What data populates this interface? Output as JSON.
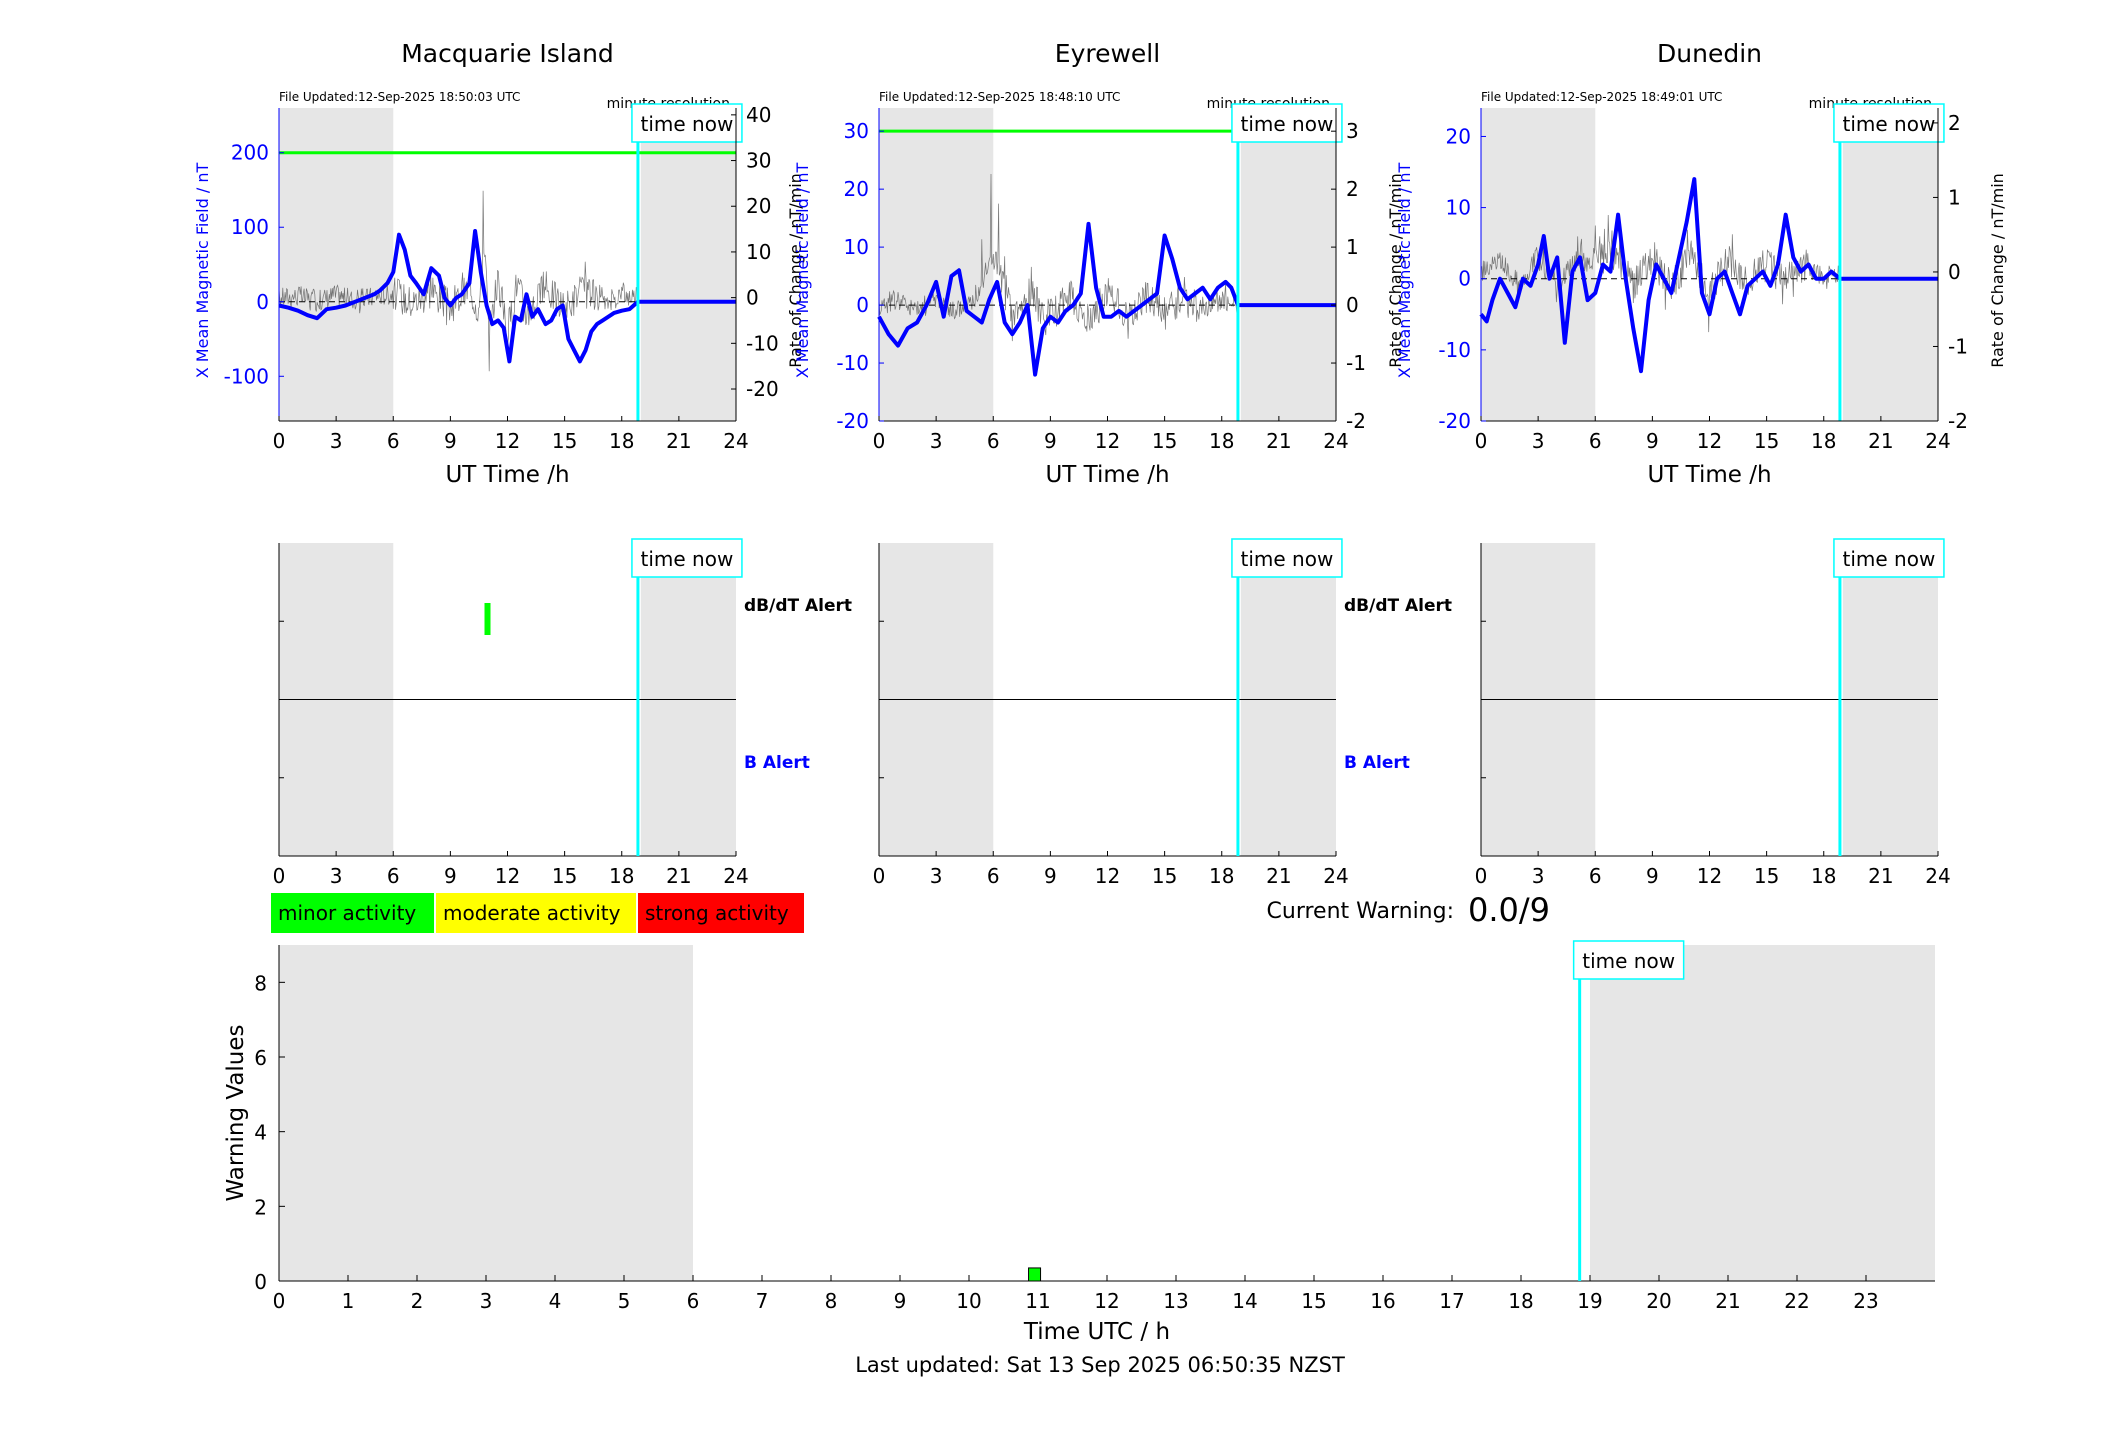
{
  "stations": [
    {
      "name": "Macquarie Island",
      "file_updated": "File Updated:12-Sep-2025 18:50:03 UTC",
      "resolution": "minute resolution",
      "left_ylabel": "X Mean Magnetic Field / nT",
      "right_ylabel": "Rate of Change / nT/min",
      "left_ticks": [
        "-100",
        "0",
        "100",
        "200"
      ],
      "right_ticks": [
        "-20",
        "-10",
        "0",
        "10",
        "20",
        "30",
        "40"
      ],
      "xlabel": "UT Time /h",
      "show_alert_labels": true
    },
    {
      "name": "Eyrewell",
      "file_updated": "File Updated:12-Sep-2025 18:48:10 UTC",
      "resolution": "minute resolution",
      "left_ylabel": "X Mean Magnetic Field / nT",
      "right_ylabel": "Rate of Change / nT/min",
      "left_ticks": [
        "-20",
        "-10",
        "0",
        "10",
        "20",
        "30"
      ],
      "right_ticks": [
        "-2",
        "-1",
        "0",
        "1",
        "2",
        "3"
      ],
      "xlabel": "UT Time /h",
      "show_alert_labels": true
    },
    {
      "name": "Dunedin",
      "file_updated": "File Updated:12-Sep-2025 18:49:01 UTC",
      "resolution": "minute resolution",
      "left_ylabel": "X Mean Magnetic Field / nT",
      "right_ylabel": "Rate of Change / nT/min",
      "left_ticks": [
        "-20",
        "-10",
        "0",
        "10",
        "20"
      ],
      "right_ticks": [
        "-2",
        "-1",
        "0",
        "1",
        "2"
      ],
      "xlabel": "UT Time /h",
      "show_alert_labels": false
    }
  ],
  "time_now_label": "time now",
  "time_now_hour": 18.85,
  "shaded_ranges": [
    [
      0,
      6
    ],
    [
      19,
      24
    ]
  ],
  "x_ticks": [
    "0",
    "3",
    "6",
    "9",
    "12",
    "15",
    "18",
    "21",
    "24"
  ],
  "alert_labels": {
    "dbdt": "dB/dT Alert",
    "b": "B Alert"
  },
  "alert_events": [
    {
      "station": "Macquarie Island",
      "type": "dB/dT",
      "hour": 10.95,
      "level": "minor"
    }
  ],
  "legend": [
    {
      "label": "minor activity",
      "color": "#00ff00"
    },
    {
      "label": "moderate activity",
      "color": "#ffff00"
    },
    {
      "label": "strong activity",
      "color": "#ff0000"
    }
  ],
  "current_warning": {
    "label": "Current Warning:",
    "value": "0.0/9"
  },
  "chart_data": [
    {
      "type": "line",
      "title": "Macquarie Island",
      "xlabel": "UT Time /h",
      "ylabel": "X Mean Magnetic Field / nT",
      "y2label": "Rate of Change / nT/min",
      "xlim": [
        0,
        24
      ],
      "ylim": [
        -160,
        260
      ],
      "y2lim": [
        -27,
        41.5
      ],
      "threshold_line": 200,
      "series": [
        {
          "x": [
            0,
            0.5,
            1,
            1.5,
            2,
            2.5,
            3,
            3.5,
            4,
            4.5,
            5,
            5.3,
            5.7,
            6,
            6.3,
            6.6,
            6.9,
            7.2,
            7.6,
            8,
            8.4,
            8.7,
            9,
            9.3,
            9.6,
            10,
            10.3,
            10.6,
            10.9,
            11.2,
            11.5,
            11.8,
            12.1,
            12.4,
            12.7,
            13,
            13.3,
            13.6,
            14,
            14.3,
            14.6,
            14.9,
            15.2,
            15.5,
            15.8,
            16.1,
            16.4,
            16.7,
            17,
            17.3,
            17.6,
            18,
            18.4,
            18.85,
            19,
            21,
            24
          ],
          "values": [
            -5,
            -8,
            -12,
            -18,
            -22,
            -10,
            -8,
            -5,
            0,
            5,
            10,
            15,
            25,
            40,
            90,
            70,
            35,
            25,
            10,
            45,
            35,
            5,
            -5,
            5,
            10,
            25,
            95,
            40,
            -5,
            -30,
            -25,
            -35,
            -80,
            -20,
            -25,
            10,
            -20,
            -10,
            -30,
            -25,
            -10,
            -5,
            -50,
            -65,
            -80,
            -65,
            -40,
            -30,
            -25,
            -20,
            -15,
            -12,
            -10,
            0,
            0,
            0,
            0
          ]
        },
        {
          "name": "dB/dt",
          "x": [
            0,
            1,
            2,
            3,
            4,
            5,
            6,
            7,
            8,
            9,
            10,
            10.5,
            10.8,
            11,
            11.5,
            12,
            12.5,
            13,
            14,
            15,
            16,
            17,
            18,
            18.85
          ],
          "values": [
            0,
            1,
            -2,
            2,
            -2,
            1,
            3,
            -3,
            4,
            -5,
            6,
            -8,
            35,
            -20,
            12,
            -22,
            10,
            -10,
            6,
            -6,
            5,
            -4,
            2,
            0
          ]
        }
      ]
    },
    {
      "type": "line",
      "title": "Eyrewell",
      "xlabel": "UT Time /h",
      "ylabel": "X Mean Magnetic Field / nT",
      "y2label": "Rate of Change / nT/min",
      "xlim": [
        0,
        24
      ],
      "ylim": [
        -20,
        34
      ],
      "y2lim": [
        -2,
        3.4
      ],
      "threshold_line": 30,
      "series": [
        {
          "x": [
            0,
            0.5,
            1,
            1.5,
            2,
            2.5,
            3,
            3.4,
            3.8,
            4.2,
            4.6,
            5,
            5.4,
            5.8,
            6.2,
            6.6,
            7,
            7.4,
            7.8,
            8.2,
            8.6,
            9,
            9.4,
            9.8,
            10.2,
            10.6,
            11,
            11.4,
            11.8,
            12.2,
            12.6,
            13,
            13.4,
            13.8,
            14.2,
            14.6,
            15,
            15.4,
            15.8,
            16.2,
            16.6,
            17,
            17.4,
            17.8,
            18.2,
            18.5,
            18.85,
            19,
            21,
            24
          ],
          "values": [
            -2,
            -5,
            -7,
            -4,
            -3,
            0,
            4,
            -2,
            5,
            6,
            -1,
            -2,
            -3,
            1,
            4,
            -3,
            -5,
            -3,
            0,
            -12,
            -4,
            -2,
            -3,
            -1,
            0,
            2,
            14,
            3,
            -2,
            -2,
            -1,
            -2,
            -1,
            0,
            1,
            2,
            12,
            8,
            3,
            1,
            2,
            3,
            1,
            3,
            4,
            3,
            0,
            0,
            0,
            0
          ]
        },
        {
          "name": "dB/dt",
          "x": [
            0,
            1,
            2,
            3,
            4,
            5,
            6,
            7,
            8,
            9,
            10,
            11,
            12,
            13,
            14,
            15,
            16,
            17,
            18,
            18.85
          ],
          "values": [
            0,
            0.3,
            -0.3,
            0.4,
            -0.3,
            0.3,
            2.5,
            -0.5,
            0.4,
            -0.6,
            0.5,
            -0.7,
            0.5,
            -0.5,
            0.4,
            -0.4,
            0.3,
            -0.3,
            0.3,
            0
          ]
        }
      ]
    },
    {
      "type": "line",
      "title": "Dunedin",
      "xlabel": "UT Time /h",
      "ylabel": "X Mean Magnetic Field / nT",
      "y2label": "Rate of Change / nT/min",
      "xlim": [
        0,
        24
      ],
      "ylim": [
        -20,
        24
      ],
      "y2lim": [
        -2,
        2.2
      ],
      "series": [
        {
          "x": [
            0,
            0.3,
            0.6,
            1,
            1.4,
            1.8,
            2.2,
            2.6,
            3,
            3.3,
            3.6,
            4,
            4.4,
            4.8,
            5.2,
            5.6,
            6,
            6.4,
            6.8,
            7.2,
            7.6,
            8,
            8.4,
            8.8,
            9.2,
            9.6,
            10,
            10.4,
            10.8,
            11.2,
            11.6,
            12,
            12.4,
            12.8,
            13.2,
            13.6,
            14,
            14.4,
            14.8,
            15.2,
            15.6,
            16,
            16.4,
            16.8,
            17.2,
            17.6,
            18,
            18.4,
            18.85,
            19,
            21,
            24
          ],
          "values": [
            -5,
            -6,
            -3,
            0,
            -2,
            -4,
            0,
            -1,
            2,
            6,
            0,
            3,
            -9,
            1,
            3,
            -3,
            -2,
            2,
            1,
            9,
            0,
            -7,
            -13,
            -3,
            2,
            0,
            -2,
            3,
            8,
            14,
            -2,
            -5,
            0,
            1,
            -2,
            -5,
            -1,
            0,
            1,
            -1,
            2,
            9,
            3,
            1,
            2,
            0,
            0,
            1,
            0,
            0,
            0,
            0
          ]
        },
        {
          "name": "dB/dt",
          "x": [
            0,
            1,
            2,
            3,
            4,
            5,
            6,
            7,
            8,
            9,
            10,
            11,
            12,
            13,
            14,
            15,
            16,
            17,
            18,
            18.85
          ],
          "values": [
            0,
            0.4,
            -0.4,
            0.5,
            -0.5,
            0.4,
            0.4,
            0.6,
            -0.5,
            0.4,
            -0.6,
            0.7,
            -0.8,
            0.5,
            -0.4,
            0.3,
            -0.3,
            0.2,
            -0.2,
            0
          ]
        }
      ]
    },
    {
      "type": "bar",
      "xlabel": "Time UTC / h",
      "ylabel": "Warning Values",
      "xlim": [
        0,
        24
      ],
      "ylim": [
        0,
        9
      ],
      "x_ticks": [
        "0",
        "1",
        "2",
        "3",
        "4",
        "5",
        "6",
        "7",
        "8",
        "9",
        "10",
        "11",
        "12",
        "13",
        "14",
        "15",
        "16",
        "17",
        "18",
        "19",
        "20",
        "21",
        "22",
        "23"
      ],
      "y_ticks": [
        "0",
        "2",
        "4",
        "6",
        "8"
      ],
      "shaded_ranges": [
        [
          0,
          6
        ],
        [
          19,
          24
        ]
      ],
      "bars": [
        {
          "x": 10.95,
          "value": 0.35,
          "color": "#00ff00"
        }
      ]
    }
  ],
  "last_updated": "Last updated: Sat 13 Sep 2025 06:50:35 NZST"
}
